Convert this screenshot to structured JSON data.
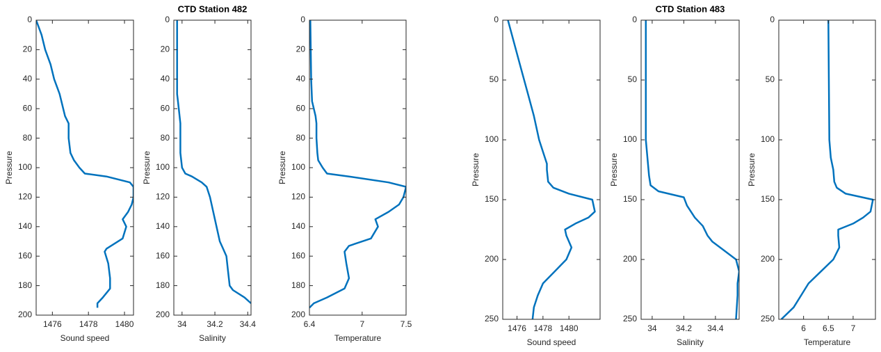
{
  "chart_data": [
    {
      "type": "line",
      "xlabel": "Sound speed",
      "ylabel": "Pressure",
      "y_direction": "reverse",
      "x": [
        1475.1,
        1475.4,
        1475.6,
        1475.9,
        1476.1,
        1476.4,
        1476.5,
        1476.6,
        1476.7,
        1476.9,
        1476.9,
        1477.0,
        1477.2,
        1477.5,
        1477.8,
        1479.0,
        1480.3,
        1480.5,
        1480.5,
        1480.4,
        1480.2,
        1479.9,
        1480.1,
        1479.9,
        1479.0,
        1478.9,
        1479.1,
        1479.2,
        1479.2,
        1478.8,
        1478.5,
        1478.5
      ],
      "series": [
        {
          "color": "#0072bd",
          "values": [
            0,
            10,
            20,
            30,
            40,
            50,
            55,
            60,
            65,
            70,
            80,
            90,
            95,
            100,
            104,
            106,
            110,
            113,
            120,
            125,
            130,
            135,
            140,
            148,
            155,
            157,
            165,
            175,
            182,
            188,
            192,
            195
          ]
        }
      ],
      "xlim": [
        1475.1,
        1480.5
      ],
      "xticks": [
        1476,
        1478,
        1480
      ],
      "ylim": [
        0,
        200
      ],
      "yticks": [
        0,
        20,
        40,
        60,
        80,
        100,
        120,
        140,
        160,
        180,
        200
      ]
    },
    {
      "type": "line",
      "title": "CTD Station 482",
      "xlabel": "Salinity",
      "ylabel": "Pressure",
      "y_direction": "reverse",
      "x": [
        33.97,
        33.97,
        33.98,
        33.99,
        33.99,
        34.0,
        34.02,
        34.06,
        34.12,
        34.15,
        34.17,
        34.19,
        34.21,
        34.23,
        34.25,
        34.27,
        34.28,
        34.29,
        34.31,
        34.38,
        34.42
      ],
      "series": [
        {
          "color": "#0072bd",
          "values": [
            0,
            50,
            60,
            70,
            90,
            100,
            104,
            106,
            110,
            113,
            120,
            130,
            140,
            150,
            155,
            160,
            170,
            180,
            183,
            188,
            192
          ]
        }
      ],
      "xlim": [
        33.95,
        34.42
      ],
      "xticks": [
        34,
        34.2,
        34.4
      ],
      "ylim": [
        0,
        200
      ],
      "yticks": [
        0,
        20,
        40,
        60,
        80,
        100,
        120,
        140,
        160,
        180,
        200
      ]
    },
    {
      "type": "line",
      "xlabel": "Temperature",
      "ylabel": "Pressure",
      "y_direction": "reverse",
      "x": [
        6.41,
        6.42,
        6.43,
        6.45,
        6.47,
        6.48,
        6.48,
        6.49,
        6.5,
        6.55,
        6.6,
        6.85,
        7.3,
        7.5,
        7.47,
        7.42,
        7.3,
        7.15,
        7.18,
        7.1,
        6.85,
        6.8,
        6.82,
        6.85,
        6.8,
        6.6,
        6.45,
        6.4
      ],
      "series": [
        {
          "color": "#0072bd",
          "values": [
            0,
            40,
            55,
            60,
            65,
            70,
            80,
            90,
            95,
            100,
            104,
            106,
            110,
            113,
            120,
            125,
            130,
            135,
            140,
            148,
            153,
            157,
            165,
            175,
            182,
            188,
            192,
            195
          ]
        }
      ],
      "xlim": [
        6.4,
        7.5
      ],
      "xticks": [
        6.4,
        7,
        7.5
      ],
      "ylim": [
        0,
        200
      ],
      "yticks": [
        0,
        20,
        40,
        60,
        80,
        100,
        120,
        140,
        160,
        180,
        200
      ]
    },
    {
      "type": "line",
      "xlabel": "Sound speed",
      "ylabel": "Pressure",
      "y_direction": "reverse",
      "x": [
        1475.3,
        1475.8,
        1476.3,
        1476.8,
        1477.3,
        1477.7,
        1478.0,
        1478.3,
        1478.3,
        1478.4,
        1478.8,
        1480.0,
        1481.8,
        1482.0,
        1481.5,
        1480.5,
        1479.7,
        1479.8,
        1480.2,
        1479.8,
        1478.9,
        1478.0,
        1477.6,
        1477.3,
        1477.2
      ],
      "series": [
        {
          "color": "#0072bd",
          "values": [
            0,
            20,
            40,
            60,
            80,
            100,
            110,
            120,
            125,
            135,
            140,
            145,
            150,
            160,
            165,
            170,
            175,
            180,
            190,
            200,
            210,
            220,
            230,
            240,
            250
          ]
        }
      ],
      "xlim": [
        1474.9,
        1482.4
      ],
      "xticks": [
        1476,
        1478,
        1480
      ],
      "ylim": [
        0,
        250
      ],
      "yticks": [
        0,
        50,
        100,
        150,
        200,
        250
      ]
    },
    {
      "type": "line",
      "title": "CTD Station 483",
      "xlabel": "Salinity",
      "ylabel": "Pressure",
      "y_direction": "reverse",
      "x": [
        33.96,
        33.96,
        33.97,
        33.98,
        33.99,
        34.04,
        34.2,
        34.22,
        34.27,
        34.32,
        34.35,
        34.38,
        34.45,
        34.53,
        34.55,
        34.54,
        34.54,
        34.53
      ],
      "series": [
        {
          "color": "#0072bd",
          "values": [
            0,
            100,
            115,
            130,
            138,
            143,
            148,
            155,
            165,
            172,
            180,
            185,
            192,
            200,
            210,
            220,
            230,
            250
          ]
        }
      ],
      "xlim": [
        33.93,
        34.55
      ],
      "xticks": [
        34,
        34.2,
        34.4
      ],
      "ylim": [
        0,
        250
      ],
      "yticks": [
        0,
        50,
        100,
        150,
        200,
        250
      ]
    },
    {
      "type": "line",
      "xlabel": "Temperature",
      "ylabel": "Pressure",
      "y_direction": "reverse",
      "x": [
        6.5,
        6.52,
        6.55,
        6.6,
        6.62,
        6.67,
        6.85,
        7.4,
        7.35,
        7.2,
        7.0,
        6.7,
        6.7,
        6.72,
        6.6,
        6.35,
        6.1,
        5.95,
        5.8,
        5.55
      ],
      "series": [
        {
          "color": "#0072bd",
          "values": [
            0,
            100,
            115,
            125,
            135,
            140,
            145,
            150,
            160,
            165,
            170,
            175,
            180,
            190,
            200,
            210,
            220,
            230,
            240,
            250
          ]
        }
      ],
      "xlim": [
        5.5,
        7.45
      ],
      "xticks": [
        6,
        6.5,
        7
      ],
      "ylim": [
        0,
        250
      ],
      "yticks": [
        0,
        50,
        100,
        150,
        200,
        250
      ]
    }
  ]
}
